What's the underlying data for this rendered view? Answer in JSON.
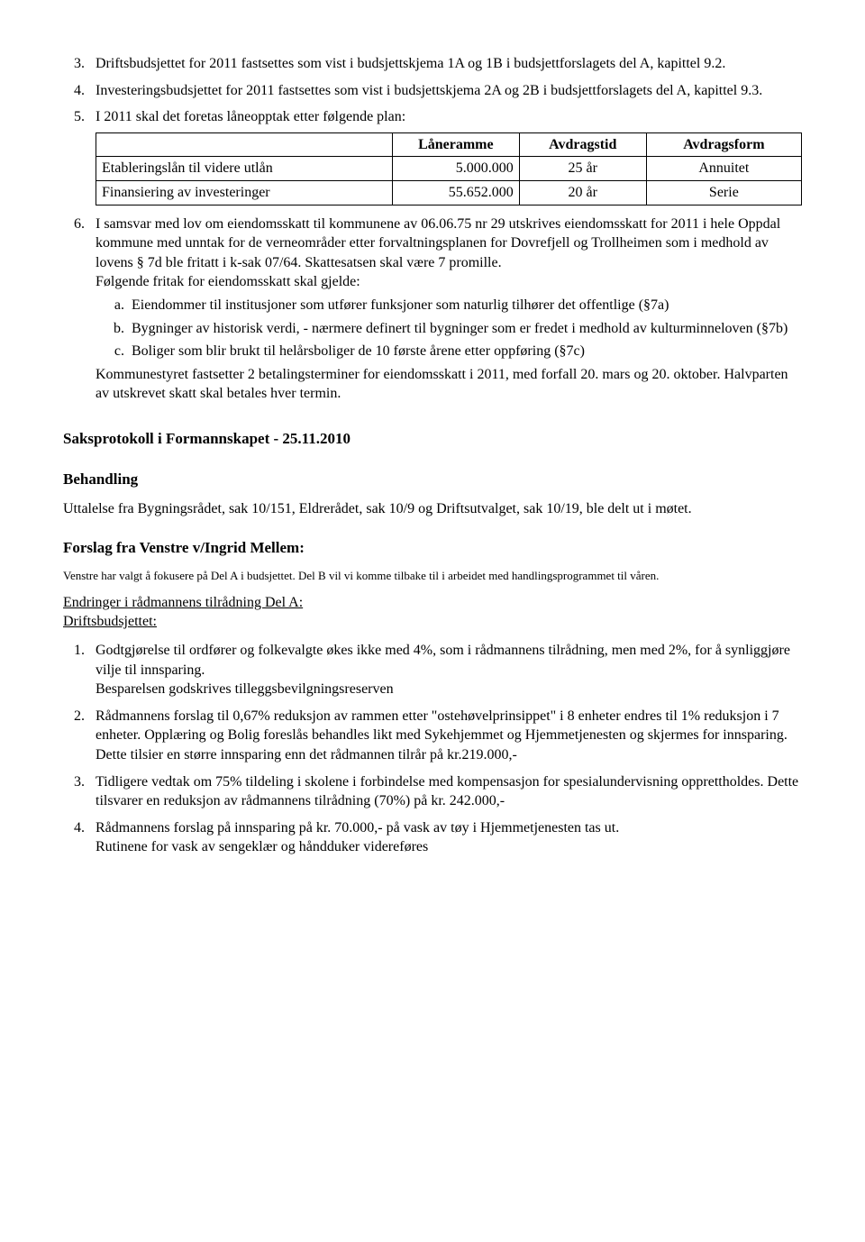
{
  "list1": {
    "item3": "Driftsbudsjettet for 2011 fastsettes som vist i budsjettskjema 1A og 1B i budsjettforslagets del A, kapittel 9.2.",
    "item4": "Investeringsbudsjettet for 2011 fastsettes som vist i budsjettskjema 2A og 2B i budsjettforslagets del A, kapittel 9.3.",
    "item5_lead": "I 2011 skal det foretas låneopptak etter følgende plan:",
    "item6_lead": "I samsvar med lov om eiendomsskatt til kommunene av 06.06.75 nr 29 utskrives eiendomsskatt for 2011 i hele Oppdal kommune med unntak for de verneområder etter forvaltningsplanen for Dovrefjell og Trollheimen som i medhold av lovens § 7d ble fritatt i k-sak 07/64. Skattesatsen skal være 7 promille.",
    "item6_f": "Følgende fritak for eiendomsskatt skal gjelde:",
    "item6_a": "Eiendommer til institusjoner som utfører funksjoner som naturlig tilhører det offentlige (§7a)",
    "item6_b": "Bygninger av historisk verdi, - nærmere definert til bygninger som er fredet i medhold av kulturminneloven (§7b)",
    "item6_c": "Boliger som blir brukt til helårsboliger de 10 første årene etter oppføring (§7c)",
    "item6_tail": "Kommunestyret fastsetter 2 betalingsterminer for eiendomsskatt i 2011, med forfall 20. mars og 20. oktober. Halvparten av utskrevet skatt skal betales hver termin."
  },
  "loan_table": {
    "headers": [
      "",
      "Låneramme",
      "Avdragstid",
      "Avdragsform"
    ],
    "rows": [
      [
        "Etableringslån til videre utlån",
        "5.000.000",
        "25 år",
        "Annuitet"
      ],
      [
        "Finansiering av investeringer",
        "55.652.000",
        "20 år",
        "Serie"
      ]
    ],
    "col_widths": [
      "42%",
      "18%",
      "18%",
      "22%"
    ]
  },
  "section_title": "Saksprotokoll i Formannskapet - 25.11.2010",
  "behandling_title": "Behandling",
  "uttalelse": "Uttalelse fra Bygningsrådet, sak 10/151, Eldrerådet, sak 10/9 og Driftsutvalget, sak 10/19, ble delt ut i møtet.",
  "forslag_title": "Forslag fra  Venstre v/Ingrid Mellem:",
  "forslag_small": "Venstre har valgt å fokusere på Del A i budsjettet. Del B vil vi komme tilbake til i arbeidet med handlingsprogrammet til våren.",
  "endringer_title": "Endringer i rådmannens tilrådning Del A:",
  "driftsbud_title": "Driftsbudsjettet:",
  "list2": {
    "item1a": "Godtgjørelse til ordfører og folkevalgte økes ikke med 4%,  som i rådmannens tilrådning, men med 2%, for å synliggjøre vilje til innsparing.",
    "item1b": "Besparelsen godskrives tilleggsbevilgningsreserven",
    "item2": "Rådmannens forslag til 0,67% reduksjon av rammen etter \"ostehøvelprinsippet\" i 8 enheter endres til 1% reduksjon i 7 enheter. Opplæring og Bolig foreslås behandles likt med Sykehjemmet og Hjemmetjenesten og skjermes for innsparing. Dette tilsier en større innsparing enn det rådmannen tilrår på kr.219.000,-",
    "item3": "Tidligere vedtak om 75% tildeling i skolene i forbindelse med kompensasjon for spesialundervisning opprettholdes. Dette tilsvarer en reduksjon av rådmannens tilrådning (70%) på kr. 242.000,-",
    "item4a": "Rådmannens forslag på innsparing på kr. 70.000,- på vask av tøy i Hjemmetjenesten tas ut.",
    "item4b": "Rutinene for vask av sengeklær og håndduker videreføres"
  }
}
